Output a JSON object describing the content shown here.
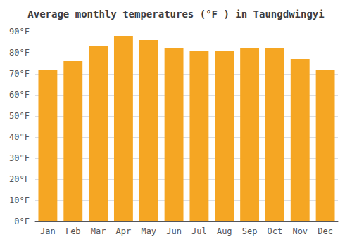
{
  "chart_data": {
    "type": "bar",
    "title": "Average monthly temperatures (°F ) in Taungdwingyi",
    "categories": [
      "Jan",
      "Feb",
      "Mar",
      "Apr",
      "May",
      "Jun",
      "Jul",
      "Aug",
      "Sep",
      "Oct",
      "Nov",
      "Dec"
    ],
    "values": [
      72,
      76,
      83,
      88,
      86,
      82,
      81,
      81,
      82,
      82,
      77,
      72
    ],
    "color": "#F5A623",
    "ylim": [
      0,
      90
    ],
    "yticks": [
      {
        "value": 0,
        "label": "0°F"
      },
      {
        "value": 10,
        "label": "10°F"
      },
      {
        "value": 20,
        "label": "20°F"
      },
      {
        "value": 30,
        "label": "30°F"
      },
      {
        "value": 40,
        "label": "40°F"
      },
      {
        "value": 50,
        "label": "50°F"
      },
      {
        "value": 60,
        "label": "60°F"
      },
      {
        "value": 70,
        "label": "70°F"
      },
      {
        "value": 80,
        "label": "80°F"
      },
      {
        "value": 90,
        "label": "90°F"
      }
    ],
    "grid": true
  }
}
